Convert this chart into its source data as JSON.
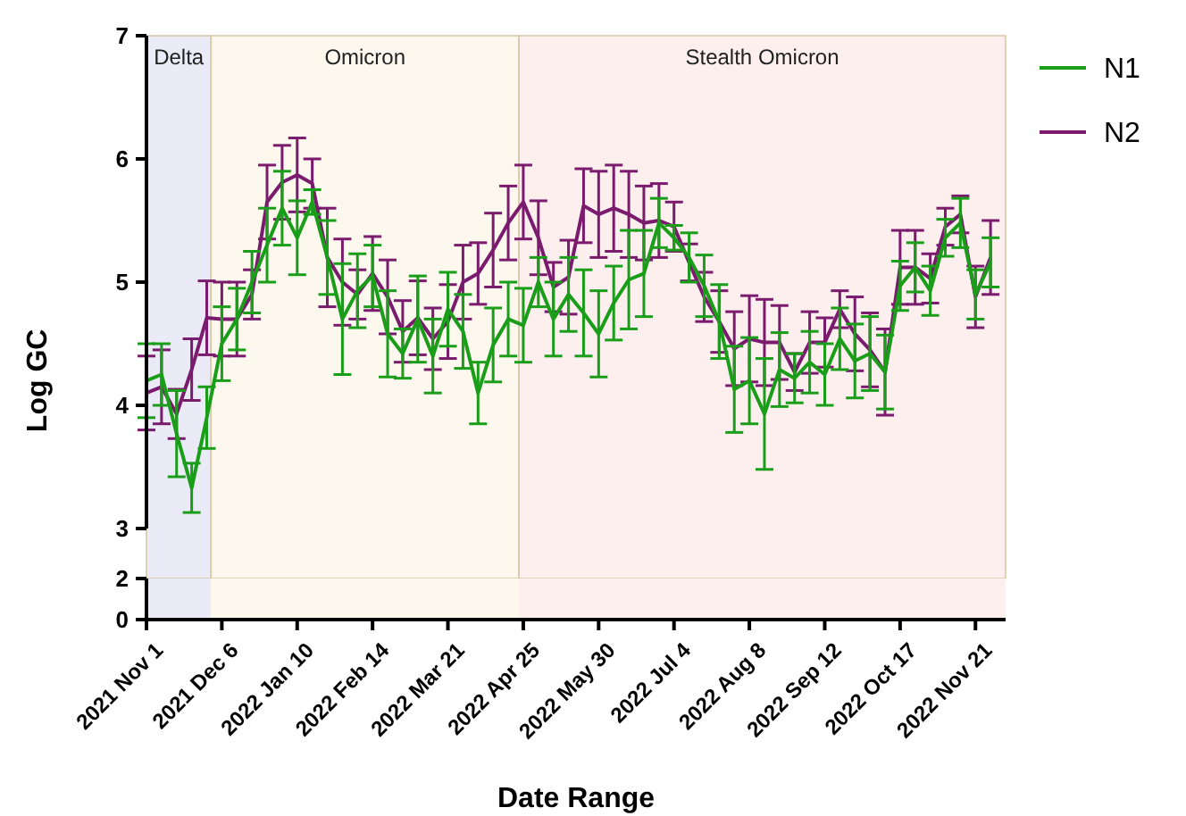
{
  "chart_data": [
    {
      "type": "line",
      "ylabel": "Log GC",
      "x": [
        "2021-11-01",
        "2021-11-08",
        "2021-11-15",
        "2021-11-22",
        "2021-11-29",
        "2021-12-06",
        "2021-12-13",
        "2021-12-20",
        "2021-12-27",
        "2022-01-03",
        "2022-01-10",
        "2022-01-17",
        "2022-01-24",
        "2022-01-31",
        "2022-02-07",
        "2022-02-14",
        "2022-02-21",
        "2022-02-28",
        "2022-03-07",
        "2022-03-14",
        "2022-03-21",
        "2022-03-28",
        "2022-04-04",
        "2022-04-11",
        "2022-04-18",
        "2022-04-25",
        "2022-05-02",
        "2022-05-09",
        "2022-05-16",
        "2022-05-23",
        "2022-05-30",
        "2022-06-06",
        "2022-06-13",
        "2022-06-20",
        "2022-06-27",
        "2022-07-04",
        "2022-07-11",
        "2022-07-18",
        "2022-07-25",
        "2022-08-01",
        "2022-08-08",
        "2022-08-15",
        "2022-08-22",
        "2022-08-29",
        "2022-09-05",
        "2022-09-12",
        "2022-09-19",
        "2022-09-26",
        "2022-10-03",
        "2022-10-10",
        "2022-10-17",
        "2022-10-24",
        "2022-10-31",
        "2022-11-07",
        "2022-11-14",
        "2022-11-21",
        "2022-11-28"
      ],
      "series": [
        {
          "name": "N1",
          "color": "#1a9e1a",
          "values": [
            4.2,
            4.25,
            3.77,
            3.33,
            3.9,
            4.5,
            4.7,
            5.0,
            5.3,
            5.6,
            5.36,
            5.65,
            5.2,
            4.7,
            4.93,
            5.05,
            4.58,
            4.42,
            4.7,
            4.4,
            4.78,
            4.6,
            4.1,
            4.49,
            4.7,
            4.65,
            5.0,
            4.7,
            4.9,
            4.75,
            4.58,
            4.83,
            5.02,
            5.07,
            5.48,
            5.36,
            5.2,
            4.97,
            4.68,
            4.13,
            4.2,
            3.93,
            4.29,
            4.22,
            4.35,
            4.25,
            4.54,
            4.36,
            4.42,
            4.27,
            4.97,
            5.12,
            4.93,
            5.36,
            5.48,
            4.9,
            5.16
          ],
          "errors": [
            0.3,
            0.25,
            0.35,
            0.2,
            0.25,
            0.3,
            0.25,
            0.25,
            0.3,
            0.3,
            0.3,
            0.1,
            0.3,
            0.45,
            0.3,
            0.25,
            0.35,
            0.2,
            0.35,
            0.3,
            0.3,
            0.3,
            0.25,
            0.3,
            0.3,
            0.3,
            0.2,
            0.3,
            0.3,
            0.35,
            0.35,
            0.3,
            0.4,
            0.35,
            0.2,
            0.1,
            0.2,
            0.25,
            0.3,
            0.35,
            0.35,
            0.45,
            0.3,
            0.2,
            0.25,
            0.25,
            0.25,
            0.3,
            0.3,
            0.3,
            0.2,
            0.2,
            0.2,
            0.15,
            0.2,
            0.2,
            0.2
          ]
        },
        {
          "name": "N2",
          "color": "#7a1b6e",
          "values": [
            4.1,
            4.15,
            3.93,
            4.29,
            4.71,
            4.7,
            4.7,
            4.9,
            5.65,
            5.81,
            5.87,
            5.8,
            5.2,
            5.0,
            4.9,
            5.07,
            4.88,
            4.6,
            4.71,
            4.54,
            4.68,
            5.0,
            5.07,
            5.26,
            5.48,
            5.65,
            5.36,
            4.96,
            5.04,
            5.62,
            5.55,
            5.6,
            5.55,
            5.48,
            5.5,
            5.45,
            5.16,
            4.88,
            4.68,
            4.46,
            4.54,
            4.51,
            4.51,
            4.27,
            4.51,
            4.51,
            4.78,
            4.58,
            4.45,
            4.27,
            5.12,
            5.12,
            5.03,
            5.45,
            5.55,
            4.88,
            5.2
          ],
          "errors": [
            0.3,
            0.3,
            0.2,
            0.25,
            0.3,
            0.3,
            0.3,
            0.2,
            0.3,
            0.3,
            0.3,
            0.2,
            0.4,
            0.35,
            0.2,
            0.3,
            0.3,
            0.25,
            0.3,
            0.25,
            0.3,
            0.3,
            0.25,
            0.3,
            0.3,
            0.3,
            0.3,
            0.2,
            0.3,
            0.3,
            0.35,
            0.35,
            0.35,
            0.3,
            0.3,
            0.2,
            0.15,
            0.2,
            0.25,
            0.3,
            0.35,
            0.35,
            0.3,
            0.15,
            0.25,
            0.2,
            0.15,
            0.3,
            0.3,
            0.35,
            0.3,
            0.3,
            0.2,
            0.15,
            0.15,
            0.25,
            0.3
          ]
        }
      ],
      "xlim": [
        "2021-11-01",
        "2022-12-05"
      ],
      "ylim": [
        3,
        7
      ],
      "yticks": [
        3,
        4,
        5,
        6,
        7
      ],
      "bands": [
        {
          "axis": "x",
          "from": "2021-11-01",
          "to": "2021-12-01",
          "label": "Delta",
          "color": "#ebebf7"
        },
        {
          "axis": "x",
          "from": "2021-12-01",
          "to": "2022-04-23",
          "label": "Omicron",
          "color": "#fdf8ee"
        },
        {
          "axis": "x",
          "from": "2022-04-23",
          "to": "2022-12-05",
          "label": "Stealth Omicron",
          "color": "#fdefee"
        }
      ],
      "tick_labels": "y",
      "legend": "top right",
      "grid": false,
      "marker": "none",
      "line_style": "solid"
    },
    {
      "type": "line",
      "xlabel": "Date Range",
      "xlim": [
        "2021-11-01",
        "2022-12-05"
      ],
      "xticks": [
        {
          "value": "2021-11-01",
          "label": "2021 Nov 1"
        },
        {
          "value": "2021-12-06",
          "label": "2021 Dec 6"
        },
        {
          "value": "2022-01-10",
          "label": "2022 Jan 10"
        },
        {
          "value": "2022-02-14",
          "label": "2022 Feb 14"
        },
        {
          "value": "2022-03-21",
          "label": "2022 Mar 21"
        },
        {
          "value": "2022-04-25",
          "label": "2022 Apr 25"
        },
        {
          "value": "2022-05-30",
          "label": "2022 May 30"
        },
        {
          "value": "2022-07-04",
          "label": "2022 Jul 4"
        },
        {
          "value": "2022-08-08",
          "label": "2022 Aug 8"
        },
        {
          "value": "2022-09-12",
          "label": "2022 Sep 12"
        },
        {
          "value": "2022-10-17",
          "label": "2022 Oct 17"
        },
        {
          "value": "2022-11-21",
          "label": "2022 Nov 21"
        }
      ],
      "ylim": [
        0,
        2
      ],
      "yticks": [
        0,
        2
      ],
      "bands": [
        {
          "axis": "x",
          "from": "2021-11-01",
          "to": "2021-12-01",
          "color": "#ebebf7"
        },
        {
          "axis": "x",
          "from": "2021-12-01",
          "to": "2022-04-23",
          "color": "#fdf8ee"
        },
        {
          "axis": "x",
          "from": "2022-04-23",
          "to": "2022-12-05",
          "color": "#fdefee"
        }
      ],
      "grid": false
    }
  ]
}
